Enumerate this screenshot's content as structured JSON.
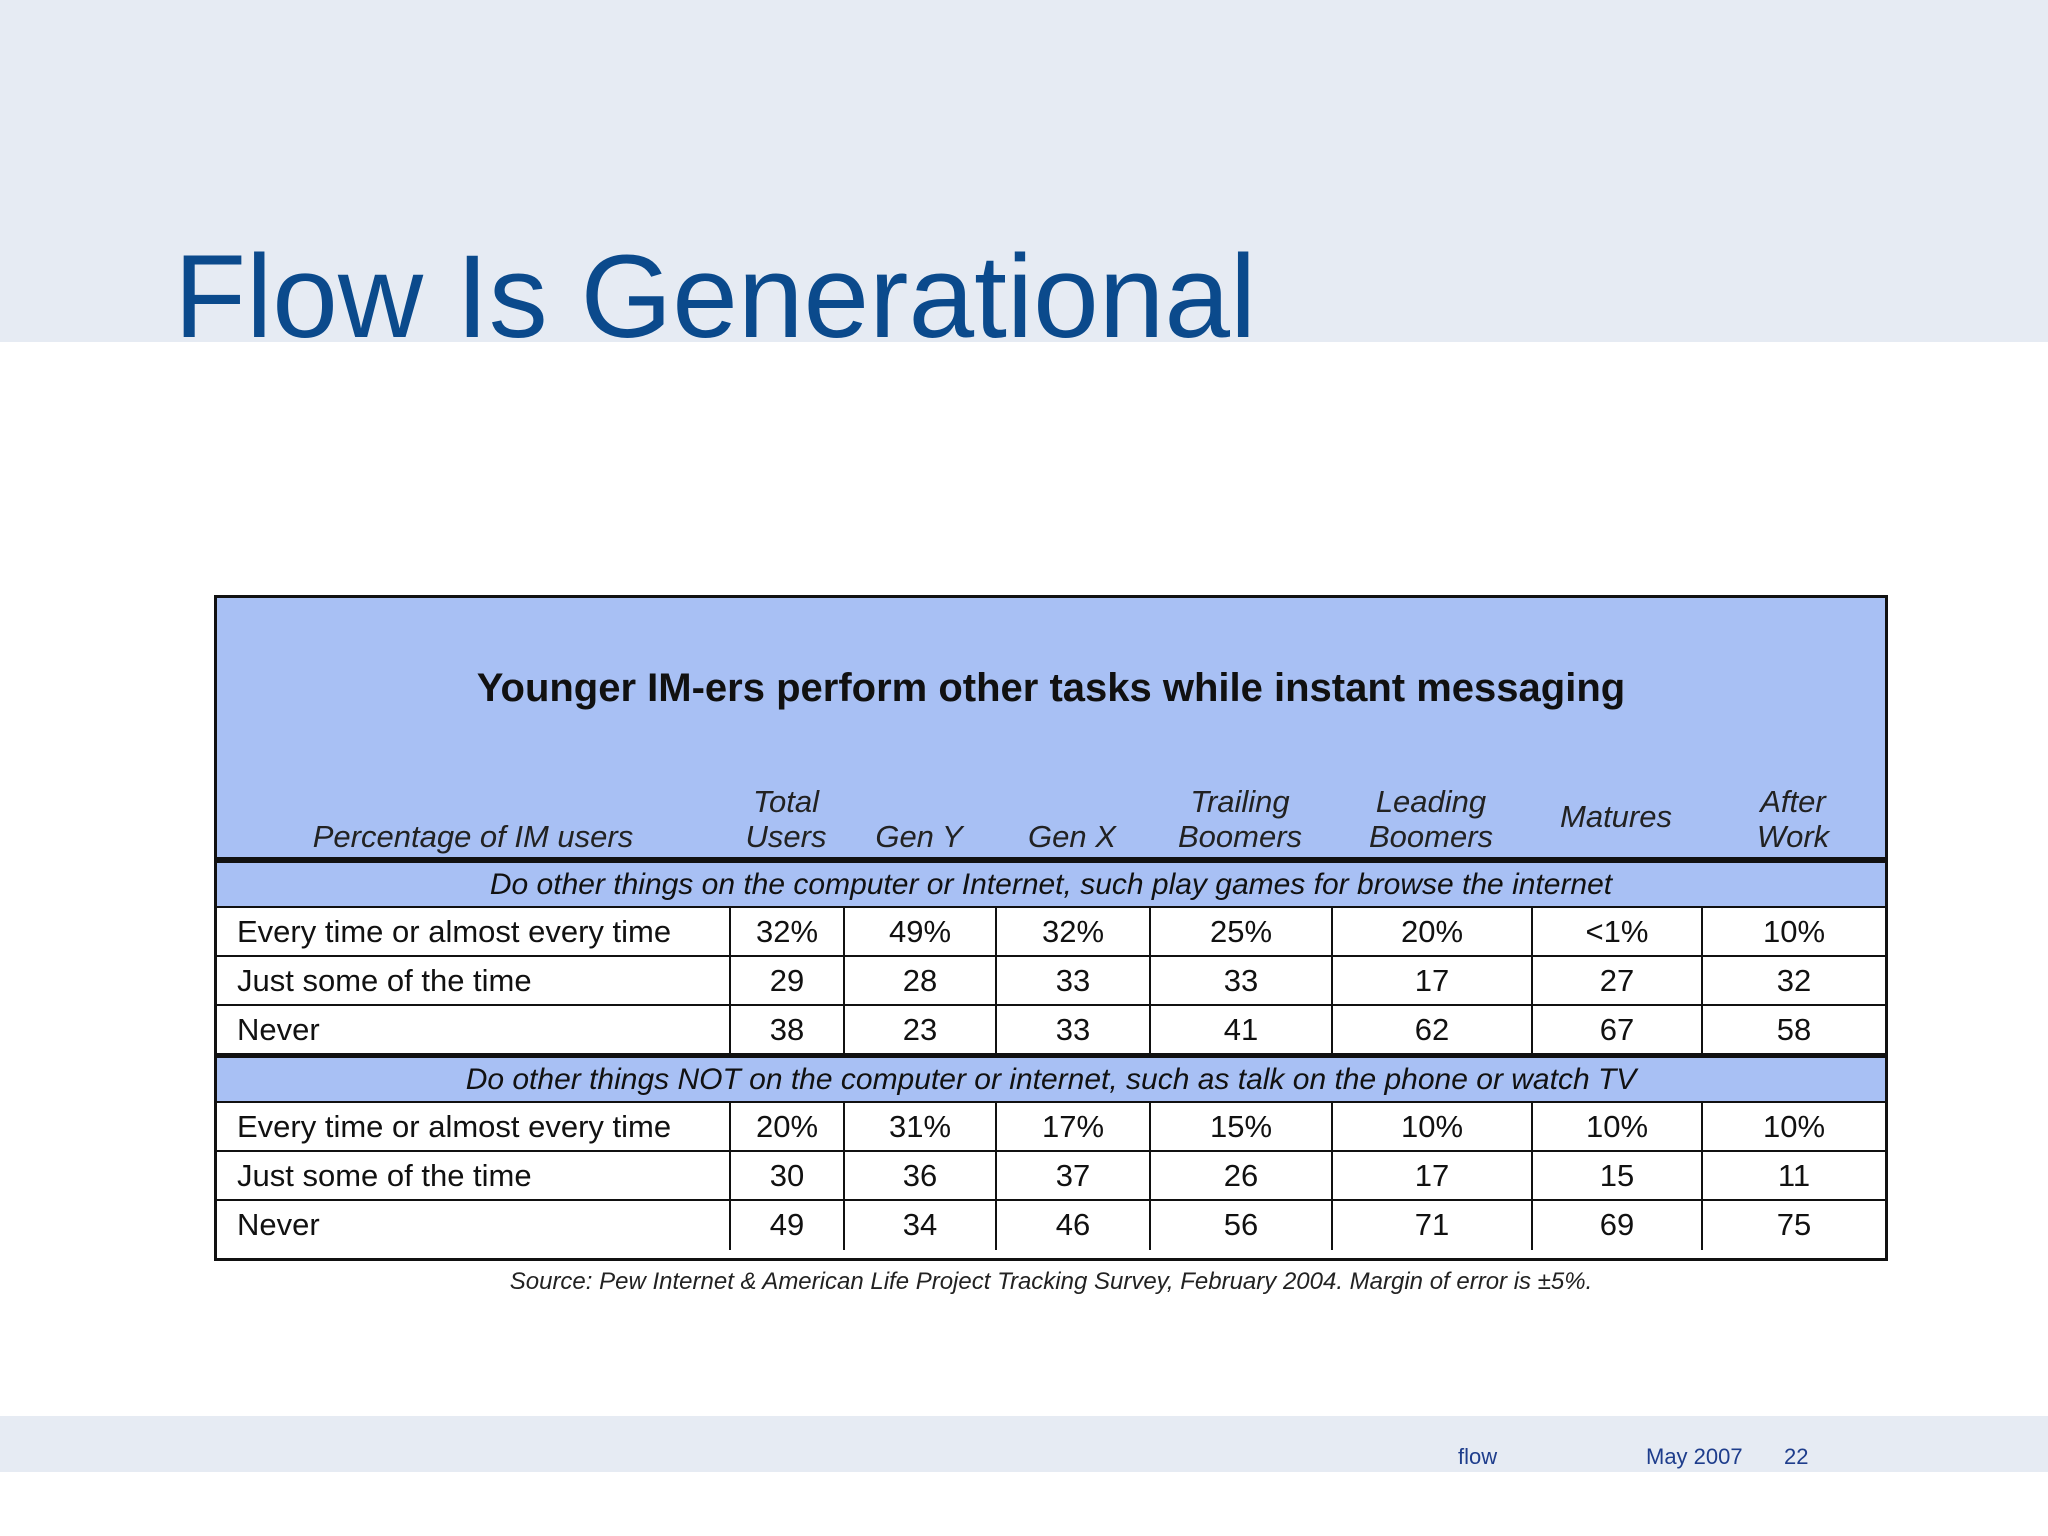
{
  "slide": {
    "title": "Flow Is Generational"
  },
  "table": {
    "title": "Younger IM-ers perform other tasks while instant messaging",
    "columns": [
      "Percentage of IM users",
      "Total\nUsers",
      "Gen Y",
      "Gen X",
      "Trailing\nBoomers",
      "Leading\nBoomers",
      "Matures",
      "After\nWork"
    ],
    "sections": [
      {
        "heading": "Do other things on the computer or Internet, such play games for browse the internet",
        "rows": [
          [
            "Every time or almost every time",
            "32%",
            "49%",
            "32%",
            "25%",
            "20%",
            "<1%",
            "10%"
          ],
          [
            "Just some of the time",
            "29",
            "28",
            "33",
            "33",
            "17",
            "27",
            "32"
          ],
          [
            "Never",
            "38",
            "23",
            "33",
            "41",
            "62",
            "67",
            "58"
          ]
        ]
      },
      {
        "heading": "Do other things NOT on the computer or internet, such as talk on the phone or watch TV",
        "rows": [
          [
            "Every time or almost every time",
            "20%",
            "31%",
            "17%",
            "15%",
            "10%",
            "10%",
            "10%"
          ],
          [
            "Just some of the time",
            "30",
            "36",
            "37",
            "26",
            "17",
            "15",
            "11"
          ],
          [
            "Never",
            "49",
            "34",
            "46",
            "56",
            "71",
            "69",
            "75"
          ]
        ]
      }
    ],
    "source": "Source: Pew Internet & American Life Project Tracking Survey, February 2004. Margin of error is ±5%."
  },
  "footer": {
    "label": "flow",
    "date": "May 2007",
    "page": "22"
  }
}
